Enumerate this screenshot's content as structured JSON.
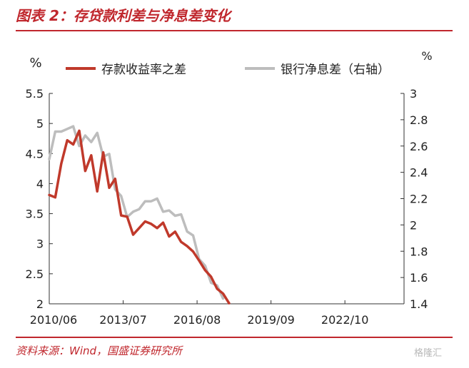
{
  "header": {
    "title": "图表 2：存贷款利差与净息差变化"
  },
  "footer": {
    "source": "资料来源：Wind，国盛证券研究所",
    "watermark": "格隆汇"
  },
  "chart_data": {
    "type": "line",
    "yunit_left": "%",
    "yunit_right": "%",
    "x_ticks": [
      "2010/06",
      "2013/07",
      "2016/08",
      "2019/09",
      "2022/10"
    ],
    "left_axis": {
      "ylim": [
        2,
        5.5
      ],
      "ticks": [
        "5.5",
        "5",
        "4.5",
        "4",
        "3.5",
        "3",
        "2.5",
        "2"
      ]
    },
    "right_axis": {
      "ylim": [
        1.4,
        3
      ],
      "ticks": [
        "3",
        "2.8",
        "2.6",
        "2.4",
        "2.2",
        "2",
        "1.8",
        "1.6",
        "1.4"
      ]
    },
    "grid": false,
    "legend": "top",
    "colors": {
      "left_series": "#c0392b",
      "right_series": "#bdbdbd",
      "accent": "#c0272d"
    },
    "series": [
      {
        "name": "存款收益率之差",
        "axis": "left",
        "points": [
          [
            "2010/06",
            3.81
          ],
          [
            "2010/09",
            3.77
          ],
          [
            "2010/12",
            4.33
          ],
          [
            "2011/03",
            4.72
          ],
          [
            "2011/06",
            4.65
          ],
          [
            "2011/09",
            4.88
          ],
          [
            "2011/12",
            4.21
          ],
          [
            "2012/03",
            4.47
          ],
          [
            "2012/06",
            3.87
          ],
          [
            "2012/09",
            4.52
          ],
          [
            "2012/12",
            3.93
          ],
          [
            "2013/03",
            4.08
          ],
          [
            "2013/06",
            3.47
          ],
          [
            "2013/09",
            3.45
          ],
          [
            "2013/12",
            3.15
          ],
          [
            "2014/03",
            3.26
          ],
          [
            "2014/06",
            3.37
          ],
          [
            "2014/09",
            3.33
          ],
          [
            "2014/12",
            3.26
          ],
          [
            "2015/03",
            3.35
          ],
          [
            "2015/06",
            3.12
          ],
          [
            "2015/09",
            3.2
          ],
          [
            "2015/12",
            3.03
          ],
          [
            "2016/03",
            2.96
          ],
          [
            "2016/06",
            2.87
          ],
          [
            "2016/09",
            2.72
          ],
          [
            "2016/12",
            2.56
          ],
          [
            "2017/03",
            2.45
          ],
          [
            "2017/06",
            2.25
          ],
          [
            "2017/09",
            2.17
          ],
          [
            "2017/12",
            2.01
          ]
        ]
      },
      {
        "name": "银行净息差（右轴）",
        "axis": "right",
        "points": [
          [
            "2010/06",
            2.5
          ],
          [
            "2010/09",
            2.71
          ],
          [
            "2010/12",
            2.71
          ],
          [
            "2011/03",
            2.73
          ],
          [
            "2011/06",
            2.75
          ],
          [
            "2011/09",
            2.6
          ],
          [
            "2011/12",
            2.68
          ],
          [
            "2012/03",
            2.63
          ],
          [
            "2012/06",
            2.7
          ],
          [
            "2012/09",
            2.52
          ],
          [
            "2012/12",
            2.54
          ],
          [
            "2013/03",
            2.27
          ],
          [
            "2013/06",
            2.22
          ],
          [
            "2013/09",
            2.06
          ],
          [
            "2013/12",
            2.1
          ],
          [
            "2014/03",
            2.12
          ],
          [
            "2014/06",
            2.18
          ],
          [
            "2014/09",
            2.18
          ],
          [
            "2014/12",
            2.2
          ],
          [
            "2015/03",
            2.1
          ],
          [
            "2015/06",
            2.11
          ],
          [
            "2015/09",
            2.07
          ],
          [
            "2015/12",
            2.08
          ],
          [
            "2016/03",
            1.95
          ],
          [
            "2016/06",
            1.92
          ],
          [
            "2016/09",
            1.74
          ],
          [
            "2016/12",
            1.69
          ],
          [
            "2017/03",
            1.56
          ],
          [
            "2017/06",
            1.54
          ],
          [
            "2017/09",
            1.44
          ]
        ]
      }
    ]
  }
}
